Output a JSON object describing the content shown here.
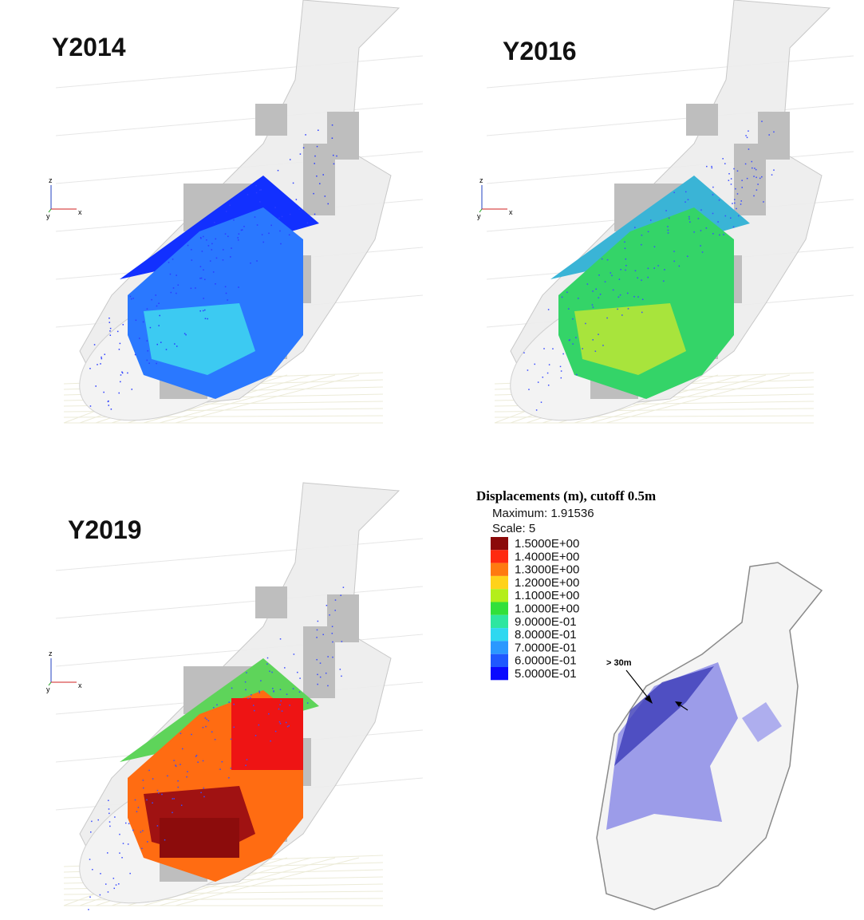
{
  "panels": [
    {
      "title": "Y2014",
      "axes": {
        "z": "z",
        "y": "y",
        "x": "x"
      }
    },
    {
      "title": "Y2016",
      "axes": {
        "z": "z",
        "y": "y",
        "x": "x"
      }
    },
    {
      "title": "Y2019",
      "axes": {
        "z": "z",
        "y": "y",
        "x": "x"
      }
    }
  ],
  "legend": {
    "title": "Displacements (m), cutoff 0.5m",
    "maximum": "Maximum: 1.91536",
    "scale": "Scale: 5",
    "entries": [
      {
        "label": "1.5000E+00",
        "color": "#8b0a0a"
      },
      {
        "label": "1.4000E+00",
        "color": "#ff2a10"
      },
      {
        "label": "1.3000E+00",
        "color": "#ff7a10"
      },
      {
        "label": "1.2000E+00",
        "color": "#ffd21a"
      },
      {
        "label": "1.1000E+00",
        "color": "#b4ee1a"
      },
      {
        "label": "1.0000E+00",
        "color": "#32e03a"
      },
      {
        "label": "9.0000E-01",
        "color": "#2ee6a0"
      },
      {
        "label": "8.0000E-01",
        "color": "#2ed8f0"
      },
      {
        "label": "7.0000E-01",
        "color": "#2a98ff"
      },
      {
        "label": "6.0000E-01",
        "color": "#1f58ff"
      },
      {
        "label": "5.0000E-01",
        "color": "#0a0aff"
      }
    ]
  },
  "inset": {
    "annotation": "> 30m"
  }
}
